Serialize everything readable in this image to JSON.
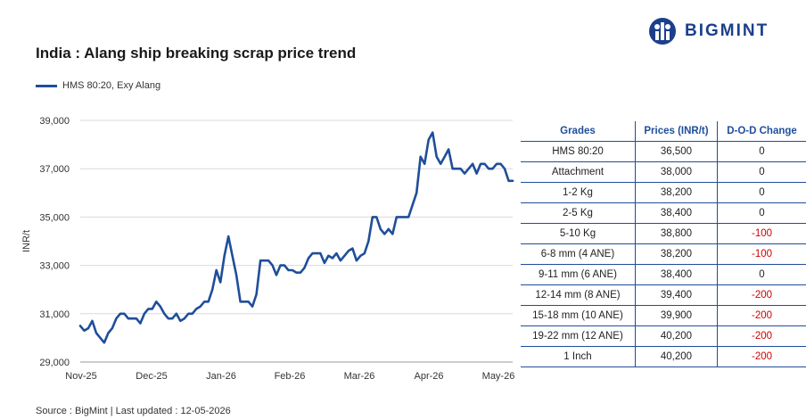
{
  "title": "India : Alang ship breaking scrap price trend",
  "logo": {
    "text": "BIGMINT",
    "icon": "bigmint-logo-icon",
    "color": "#1c3f8c"
  },
  "legend": {
    "label": "HMS 80:20, Exy Alang",
    "color": "#1f4e9a"
  },
  "source": "Source : BigMint | Last updated : 12-05-2026",
  "chart_data": {
    "type": "line",
    "title": "India : Alang ship breaking scrap price trend",
    "ylabel": "INR/t",
    "xlabel": "",
    "ylim": [
      29000,
      39000
    ],
    "yticks": [
      29000,
      31000,
      33000,
      35000,
      37000,
      39000
    ],
    "ytick_labels": [
      "29,000",
      "31,000",
      "33,000",
      "35,000",
      "37,000",
      "39,000"
    ],
    "xtick_labels": [
      "Nov-25",
      "Dec-25",
      "Jan-26",
      "Feb-26",
      "Mar-26",
      "Apr-26",
      "May-26"
    ],
    "grid": "horizontal",
    "legend_position": "top-left",
    "series": [
      {
        "name": "HMS 80:20, Exy Alang",
        "color": "#1f4e9a",
        "values": [
          30500,
          30300,
          30400,
          30700,
          30200,
          30000,
          29800,
          30200,
          30400,
          30800,
          31000,
          31000,
          30800,
          30800,
          30800,
          30600,
          31000,
          31200,
          31200,
          31500,
          31300,
          31000,
          30800,
          30800,
          31000,
          30700,
          30800,
          31000,
          31000,
          31200,
          31300,
          31500,
          31500,
          32000,
          32800,
          32300,
          33400,
          34200,
          33400,
          32600,
          31500,
          31500,
          31500,
          31300,
          31800,
          33200,
          33200,
          33200,
          33000,
          32600,
          33000,
          33000,
          32800,
          32800,
          32700,
          32700,
          32900,
          33300,
          33500,
          33500,
          33500,
          33100,
          33400,
          33300,
          33500,
          33200,
          33400,
          33600,
          33700,
          33200,
          33400,
          33500,
          34000,
          35000,
          35000,
          34500,
          34300,
          34500,
          34300,
          35000,
          35000,
          35000,
          35000,
          35500,
          36000,
          37500,
          37200,
          38200,
          38500,
          37500,
          37200,
          37500,
          37800,
          37000,
          37000,
          37000,
          36800,
          37000,
          37200,
          36800,
          37200,
          37200,
          37000,
          37000,
          37200,
          37200,
          37000,
          36500,
          36500
        ]
      }
    ]
  },
  "table": {
    "headers": [
      "Grades",
      "Prices (INR/t)",
      "D-O-D Change"
    ],
    "rows": [
      {
        "grade": "HMS 80:20",
        "price": "36,500",
        "change": "0"
      },
      {
        "grade": "Attachment",
        "price": "38,000",
        "change": "0"
      },
      {
        "grade": "1-2 Kg",
        "price": "38,200",
        "change": "0"
      },
      {
        "grade": "2-5 Kg",
        "price": "38,400",
        "change": "0"
      },
      {
        "grade": "5-10 Kg",
        "price": "38,800",
        "change": "-100"
      },
      {
        "grade": "6-8 mm (4 ANE)",
        "price": "38,200",
        "change": "-100"
      },
      {
        "grade": "9-11 mm (6 ANE)",
        "price": "38,400",
        "change": "0"
      },
      {
        "grade": "12-14 mm (8 ANE)",
        "price": "39,400",
        "change": "-200"
      },
      {
        "grade": "15-18 mm (10 ANE)",
        "price": "39,900",
        "change": "-200"
      },
      {
        "grade": "19-22 mm (12 ANE)",
        "price": "40,200",
        "change": "-200"
      },
      {
        "grade": "1 Inch",
        "price": "40,200",
        "change": "-200"
      }
    ],
    "negative_color": "#d00000"
  }
}
